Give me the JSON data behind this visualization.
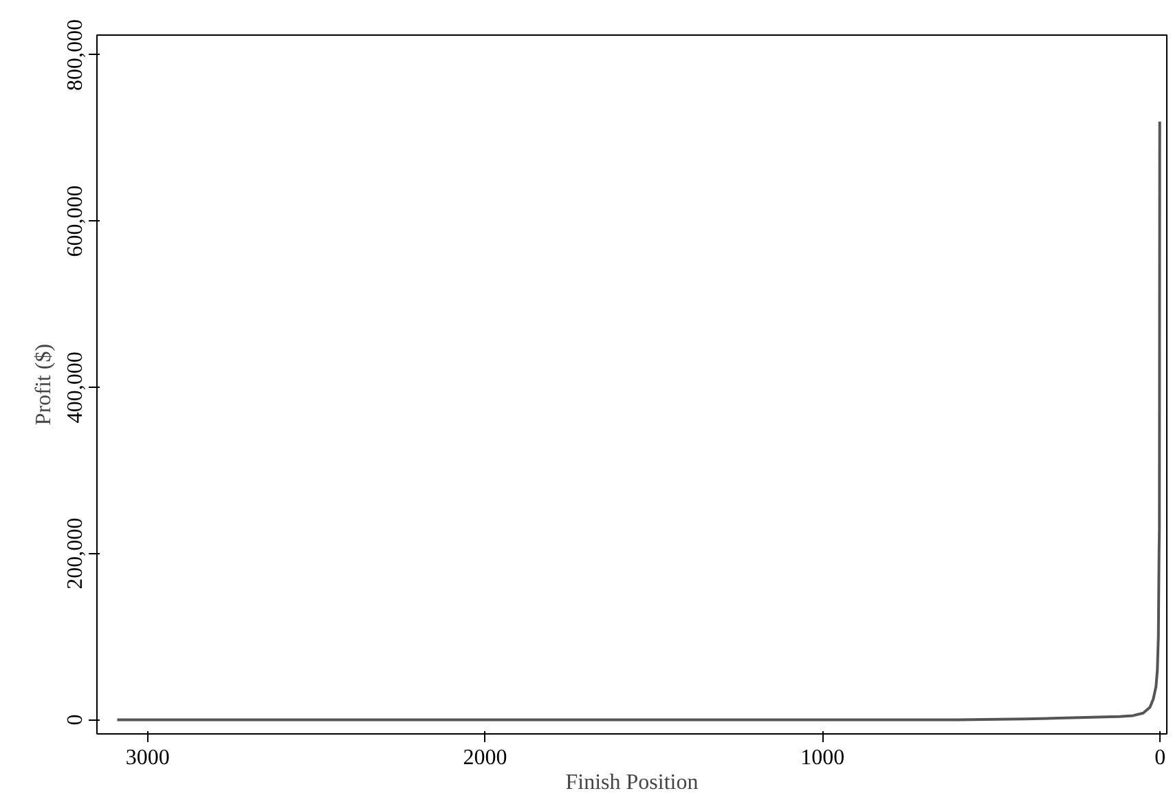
{
  "chart_data": {
    "type": "line",
    "xlabel": "Finish Position",
    "ylabel": "Profit ($)",
    "x": [
      3090,
      2500,
      2000,
      1500,
      1000,
      600,
      400,
      300,
      200,
      120,
      80,
      50,
      30,
      20,
      12,
      8,
      5,
      3,
      2,
      1
    ],
    "series": [
      {
        "color": "#555555",
        "values": [
          0,
          0,
          0,
          0,
          0,
          0,
          1000,
          2000,
          3000,
          4000,
          5000,
          8000,
          15000,
          25000,
          40000,
          60000,
          100000,
          200000,
          230000,
          720000
        ]
      }
    ],
    "xlim": [
      3150,
      -20
    ],
    "ylim": [
      -17000,
      824000
    ],
    "xticks": [
      3000,
      2000,
      1000,
      0
    ],
    "yticks": [
      {
        "value": 0,
        "label": "0"
      },
      {
        "value": 200000,
        "label": "200,000"
      },
      {
        "value": 400000,
        "label": "400,000"
      },
      {
        "value": 600000,
        "label": "600,000"
      },
      {
        "value": 800000,
        "label": "800,000"
      }
    ],
    "grid": false,
    "marker": "none",
    "line_style": "solid"
  }
}
